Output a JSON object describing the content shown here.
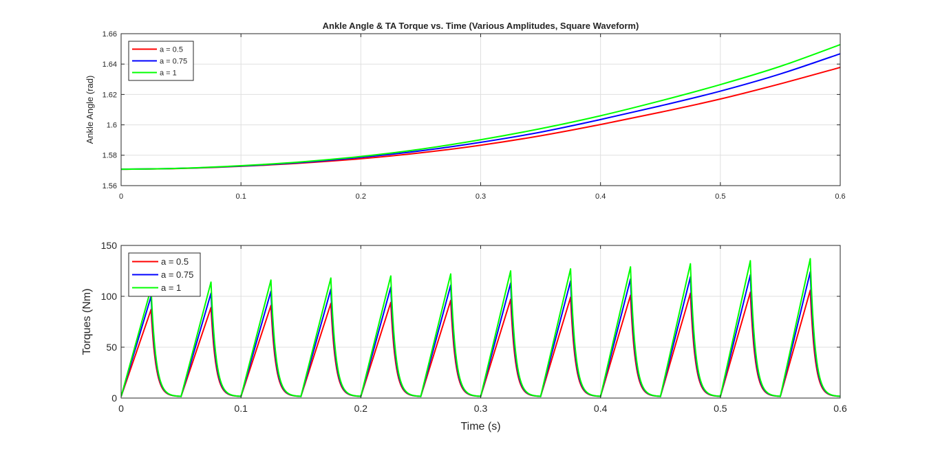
{
  "chart_data": [
    {
      "type": "line",
      "title": "Ankle Angle & TA Torque vs. Time (Various Amplitudes, Square Waveform)",
      "xlabel": "",
      "ylabel": "Ankle Angle (rad)",
      "xlim": [
        0,
        0.6
      ],
      "ylim": [
        1.56,
        1.66
      ],
      "xticks": [
        "0",
        "0.1",
        "0.2",
        "0.3",
        "0.4",
        "0.5",
        "0.6"
      ],
      "yticks": [
        "1.56",
        "1.58",
        "1.6",
        "1.62",
        "1.64",
        "1.66"
      ],
      "grid": true,
      "legend": "top-left",
      "x": [
        0,
        0.05,
        0.1,
        0.15,
        0.2,
        0.25,
        0.3,
        0.35,
        0.4,
        0.45,
        0.5,
        0.55,
        0.6
      ],
      "series": [
        {
          "name": "a = 0.5",
          "color": "#ff0000",
          "values": [
            1.5708,
            1.5713,
            1.5727,
            1.5748,
            1.5777,
            1.5816,
            1.5866,
            1.5928,
            1.6002,
            1.6083,
            1.617,
            1.627,
            1.6378
          ]
        },
        {
          "name": "a = 0.75",
          "color": "#0000ff",
          "values": [
            1.5708,
            1.5714,
            1.5729,
            1.5752,
            1.5786,
            1.5829,
            1.5885,
            1.5952,
            1.6035,
            1.6125,
            1.6222,
            1.6335,
            1.6468
          ]
        },
        {
          "name": "a = 1",
          "color": "#00ff00",
          "values": [
            1.5708,
            1.5714,
            1.5731,
            1.5756,
            1.5792,
            1.584,
            1.5902,
            1.5975,
            1.606,
            1.6158,
            1.6265,
            1.6385,
            1.6528
          ]
        }
      ]
    },
    {
      "type": "line",
      "title": "",
      "xlabel": "Time (s)",
      "ylabel": "Torques (Nm)",
      "xlim": [
        0,
        0.6
      ],
      "ylim": [
        0,
        150
      ],
      "xticks": [
        "0",
        "0.1",
        "0.2",
        "0.3",
        "0.4",
        "0.5",
        "0.6"
      ],
      "yticks": [
        "0",
        "50",
        "100",
        "150"
      ],
      "grid": true,
      "legend": "top-left",
      "waveform": {
        "period": 0.05,
        "rise_time": 0.025,
        "decay_time_constant": 0.004,
        "baseline": 1.5
      },
      "series": [
        {
          "name": "a = 0.5",
          "color": "#ff0000",
          "peaks": [
            87,
            89,
            91,
            93,
            94,
            96,
            97,
            99,
            101,
            103,
            104,
            106
          ]
        },
        {
          "name": "a = 0.75",
          "color": "#0000ff",
          "peaks": [
            100,
            103,
            105,
            107,
            109,
            111,
            113,
            115,
            117,
            119,
            121,
            124
          ]
        },
        {
          "name": "a = 1",
          "color": "#00ff00",
          "peaks": [
            108,
            114,
            116,
            118,
            120,
            122,
            125,
            127,
            129,
            132,
            135,
            137
          ]
        }
      ]
    }
  ]
}
